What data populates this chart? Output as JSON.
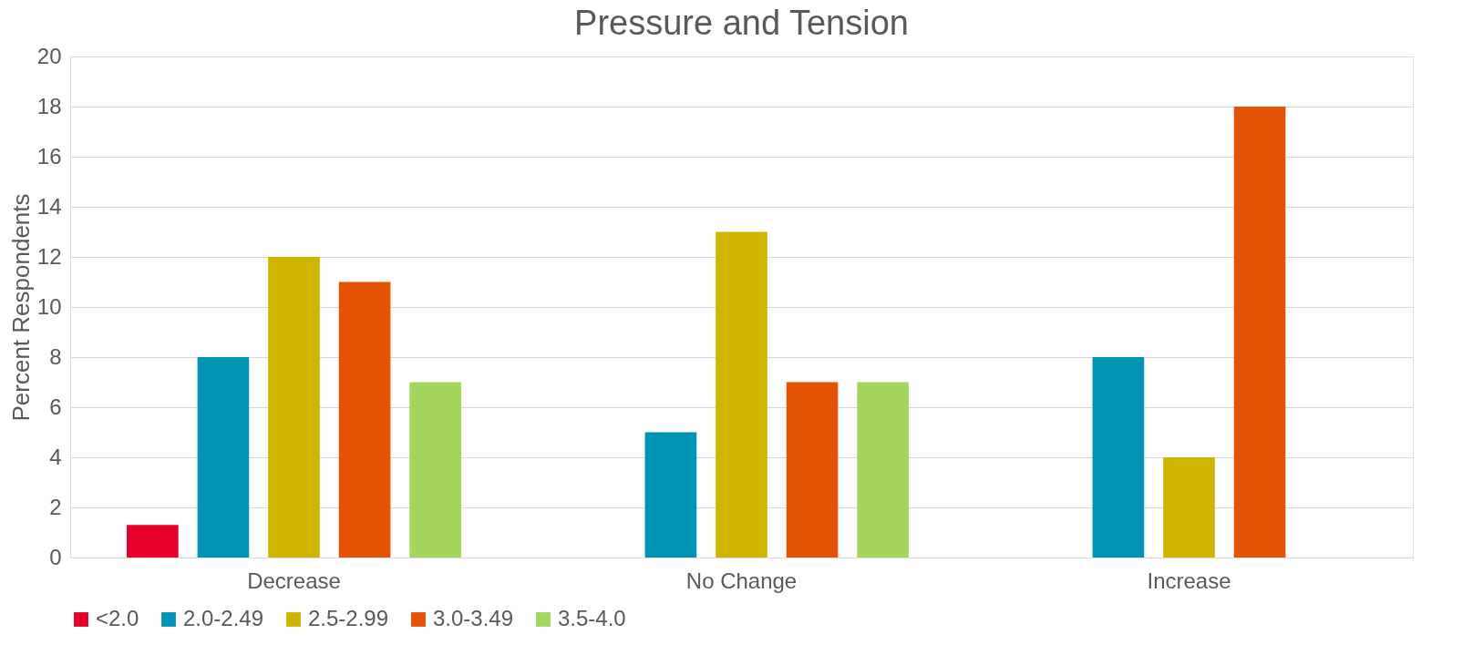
{
  "chart_data": {
    "type": "bar",
    "title": "Pressure and Tension",
    "ylabel": "Percent Respondents",
    "categories": [
      "Decrease",
      "No Change",
      "Increase"
    ],
    "series": [
      {
        "name": "<2.0",
        "color": "#e4002b",
        "values": [
          1.3,
          null,
          null
        ]
      },
      {
        "name": "2.0-2.49",
        "color": "#0093b2",
        "values": [
          8,
          5,
          8
        ]
      },
      {
        "name": "2.5-2.99",
        "color": "#cfb500",
        "values": [
          12,
          13,
          4
        ]
      },
      {
        "name": "3.0-3.49",
        "color": "#e35205",
        "values": [
          11,
          7,
          18
        ]
      },
      {
        "name": "3.5-4.0",
        "color": "#a4d65e",
        "values": [
          7,
          7,
          null
        ]
      }
    ],
    "ylim": [
      0,
      20
    ],
    "yticks": [
      0,
      2,
      4,
      6,
      8,
      10,
      12,
      14,
      16,
      18,
      20
    ],
    "grid": "y",
    "legend": "bottom"
  }
}
